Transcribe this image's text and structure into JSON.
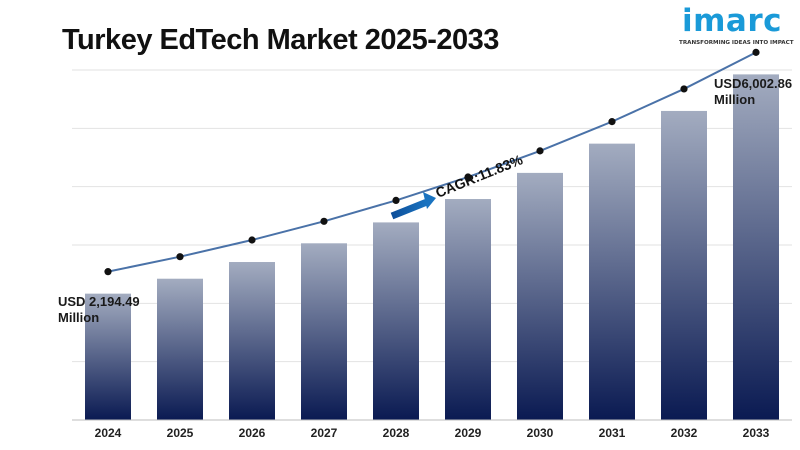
{
  "title": "Turkey EdTech Market 2025-2033",
  "logo": {
    "word": "imarc",
    "tagline": "TRANSFORMING IDEAS INTO IMPACT",
    "color": "#1a9ad8"
  },
  "chart_data": {
    "type": "bar",
    "title": "Turkey EdTech Market 2025-2033",
    "categories": [
      "2024",
      "2025",
      "2026",
      "2027",
      "2028",
      "2029",
      "2030",
      "2031",
      "2032",
      "2033"
    ],
    "values": [
      2194.49,
      2454,
      2744,
      3069,
      3432,
      3838,
      4292,
      4800,
      5368,
      6002.86
    ],
    "line_overlay": true,
    "ylim": [
      0,
      6600
    ],
    "grid": true,
    "xlabel": "",
    "ylabel": "",
    "annotations": {
      "start_line1": "USD 2,194.49",
      "start_line2": "Million",
      "end_line1": "USD6,002.86",
      "end_line2": "Million",
      "cagr": "CAGR:11.83%"
    },
    "colors": {
      "bar_top": "#a3acc0",
      "bar_bottom": "#0a1a52",
      "line": "#4a72a8",
      "marker": "#111111",
      "arrow": "#1a73c0",
      "grid": "#e2e2e2"
    }
  }
}
